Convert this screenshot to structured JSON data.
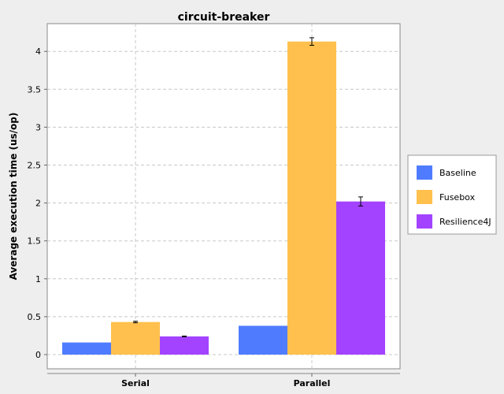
{
  "chart_data": {
    "type": "bar",
    "title": "circuit-breaker",
    "xlabel": "",
    "ylabel": "Average execution time (us/op)",
    "categories": [
      "Serial",
      "Parallel"
    ],
    "ylim": [
      0,
      4.3
    ],
    "yticks": [
      0,
      0.5,
      1,
      1.5,
      2,
      2.5,
      3,
      3.5,
      4
    ],
    "ytick_labels": [
      "0",
      "0.5",
      "1",
      "1.5",
      "2",
      "2.5",
      "3",
      "3.5",
      "4"
    ],
    "grid": true,
    "legend_position": "right",
    "series": [
      {
        "name": "Baseline",
        "color": "#4f7cff",
        "values": [
          0.16,
          0.38
        ],
        "errors": [
          0,
          0
        ]
      },
      {
        "name": "Fusebox",
        "color": "#ffc04d",
        "values": [
          0.43,
          4.13
        ],
        "errors": [
          0.01,
          0.05
        ]
      },
      {
        "name": "Resilience4J",
        "color": "#a343ff",
        "values": [
          0.24,
          2.02
        ],
        "errors": [
          0.005,
          0.06
        ]
      }
    ]
  }
}
